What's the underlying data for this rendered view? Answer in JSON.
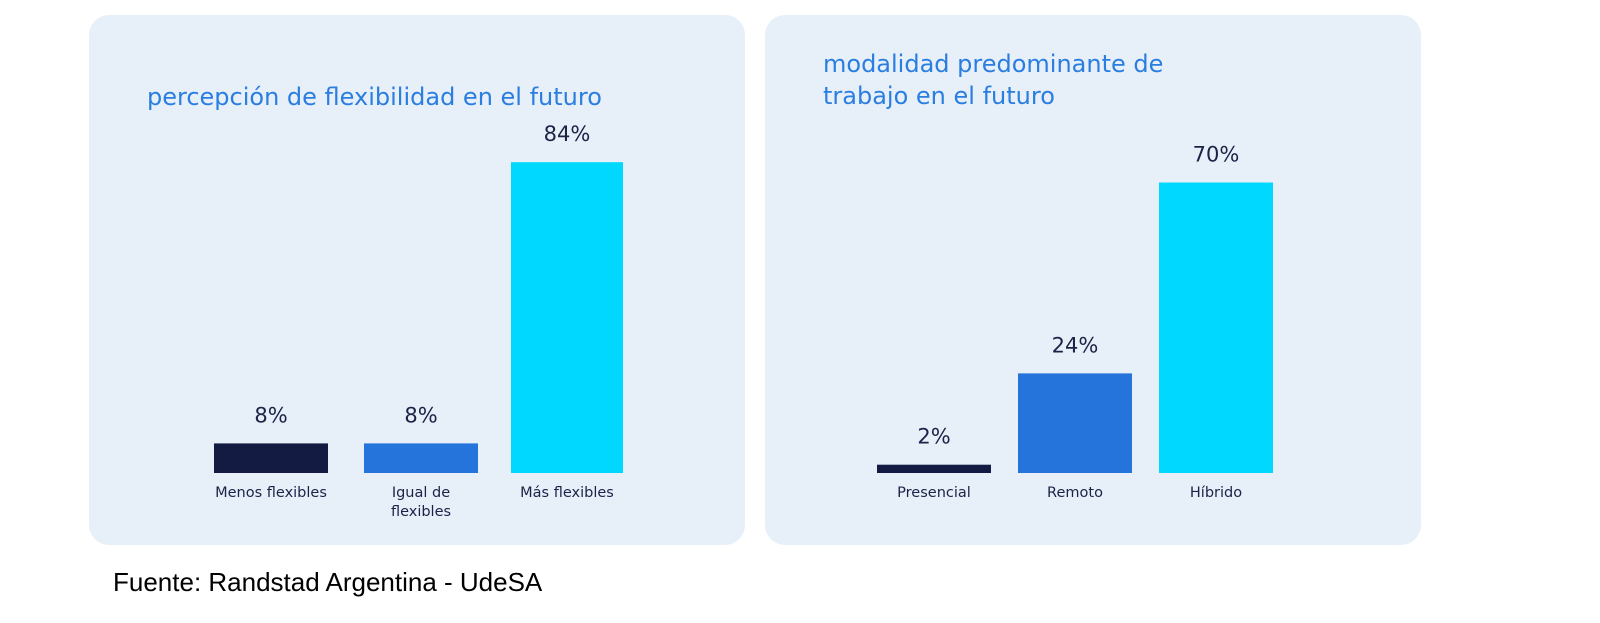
{
  "chart_data": [
    {
      "type": "bar",
      "title_lines": [
        "percepción de flexibilidad en el futuro"
      ],
      "categories": [
        [
          "Menos flexibles"
        ],
        [
          "Igual de",
          "flexibles"
        ],
        [
          "Más flexibles"
        ]
      ],
      "values": [
        8,
        8,
        84
      ],
      "value_labels": [
        "8%",
        "8%",
        "84%"
      ],
      "colors": [
        "#131b43",
        "#2474dc",
        "#00d8ff"
      ],
      "ylim": [
        0,
        100
      ],
      "grid": false,
      "legend": "none"
    },
    {
      "type": "bar",
      "title_lines": [
        "modalidad predominante de",
        "trabajo en el futuro"
      ],
      "categories": [
        [
          "Presencial"
        ],
        [
          "Remoto"
        ],
        [
          "Híbrido"
        ]
      ],
      "values": [
        2,
        24,
        70
      ],
      "value_labels": [
        "2%",
        "24%",
        "70%"
      ],
      "colors": [
        "#131b43",
        "#2474dc",
        "#00d8ff"
      ],
      "ylim": [
        0,
        100
      ],
      "grid": false,
      "legend": "none"
    }
  ],
  "footer": {
    "source": "Fuente: Randstad Argentina - UdeSA"
  }
}
